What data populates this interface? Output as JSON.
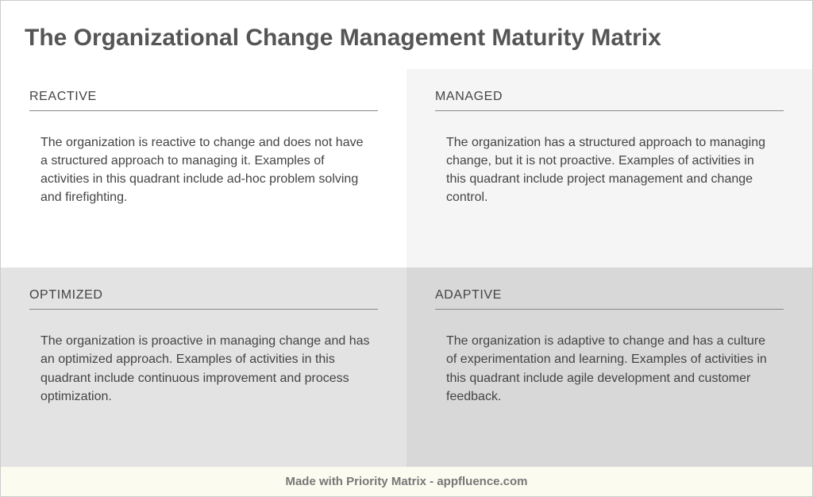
{
  "title": "The Organizational Change Management Maturity Matrix",
  "colors": {
    "text_title": "#555555",
    "text_body": "#444444",
    "divider": "#888888",
    "footer_bg": "#fcfbf0",
    "footer_text": "#777777",
    "border": "#cccccc"
  },
  "typography": {
    "title_fontsize": 30,
    "title_fontweight": 700,
    "label_fontsize": 16,
    "desc_fontsize": 16,
    "footer_fontsize": 15,
    "footer_fontweight": 700
  },
  "matrix": {
    "type": "quadrant-matrix",
    "rows": 2,
    "cols": 2,
    "quadrants": [
      {
        "label": "REACTIVE",
        "description": "The organization is reactive to change and does not have a structured approach to managing it. Examples of activities in this quadrant include ad-hoc problem solving and firefighting.",
        "background": "#ffffff"
      },
      {
        "label": "MANAGED",
        "description": "The organization has a structured approach to managing change, but it is not proactive. Examples of activities in this quadrant include project management and change control.",
        "background": "#f5f5f5"
      },
      {
        "label": "OPTIMIZED",
        "description": "The organization is proactive in managing change and has an optimized approach. Examples of activities in this quadrant include continuous improvement and process optimization.",
        "background": "#e3e3e3"
      },
      {
        "label": "ADAPTIVE",
        "description": "The organization is adaptive to change and has a culture of experimentation and learning. Examples of activities in this quadrant include agile development and customer feedback.",
        "background": "#d8d8d8"
      }
    ]
  },
  "footer": {
    "text": "Made with Priority Matrix - appfluence.com"
  }
}
